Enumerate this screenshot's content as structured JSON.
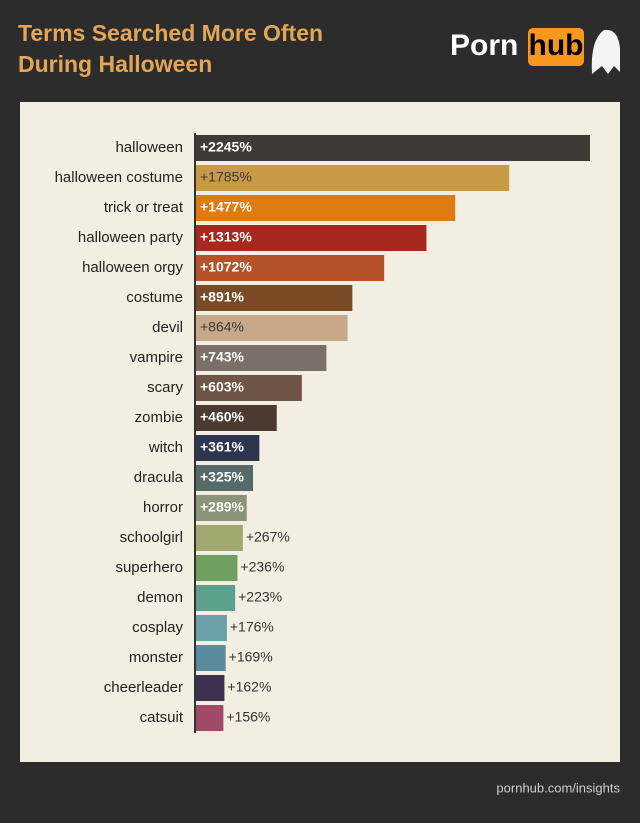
{
  "chart_data": {
    "type": "bar",
    "orientation": "horizontal",
    "title": "Terms Searched More Often During Halloween",
    "brand": {
      "left": "Porn",
      "right": "hub"
    },
    "source": "pornhub.com/insights",
    "categories": [
      "halloween",
      "halloween costume",
      "trick or treat",
      "halloween party",
      "halloween orgy",
      "costume",
      "devil",
      "vampire",
      "scary",
      "zombie",
      "witch",
      "dracula",
      "horror",
      "schoolgirl",
      "superhero",
      "demon",
      "cosplay",
      "monster",
      "cheerleader",
      "catsuit"
    ],
    "values": [
      2245,
      1785,
      1477,
      1313,
      1072,
      891,
      864,
      743,
      603,
      460,
      361,
      325,
      289,
      267,
      236,
      223,
      176,
      169,
      162,
      156
    ],
    "value_labels": [
      "+2245%",
      "+1785%",
      "+1477%",
      "+1313%",
      "+1072%",
      "+891%",
      "+864%",
      "+743%",
      "+603%",
      "+460%",
      "+361%",
      "+325%",
      "+289%",
      "+267%",
      "+236%",
      "+223%",
      "+176%",
      "+169%",
      "+162%",
      "+156%"
    ],
    "colors": [
      "#3f3a35",
      "#c99a45",
      "#e07b10",
      "#a8281f",
      "#b5522a",
      "#7a4a25",
      "#c9a88a",
      "#7a7068",
      "#6e5548",
      "#4a3a30",
      "#2e3550",
      "#566a6a",
      "#8a9478",
      "#a0a870",
      "#70a060",
      "#5aa08a",
      "#6aa0a8",
      "#5a8ca0",
      "#3e3050",
      "#a04a68"
    ]
  }
}
